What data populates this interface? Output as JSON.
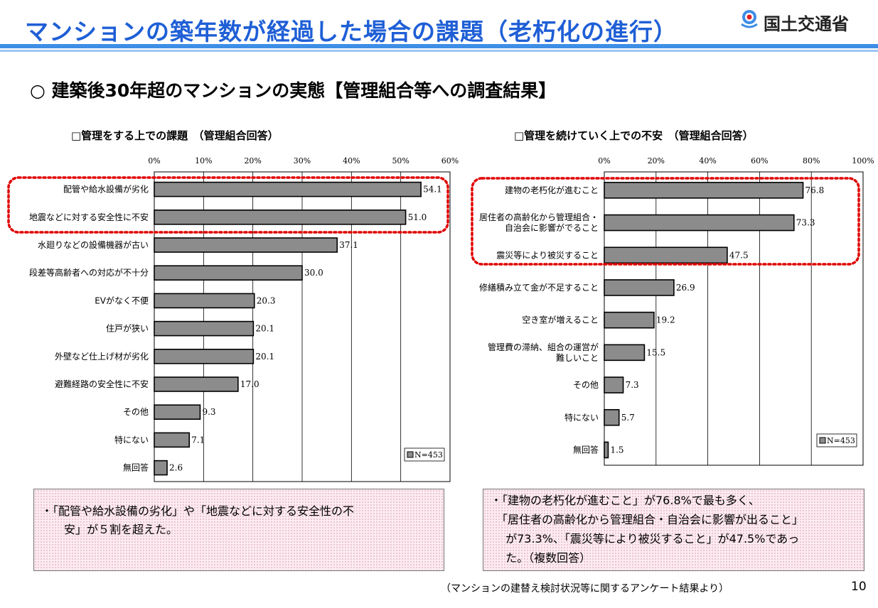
{
  "header": {
    "title": "マンションの築年数が経過した場合の課題（老朽化の進行）",
    "org": "国土交通省"
  },
  "section_title": "○ 建築後30年超のマンションの実態【管理組合等への調査結果】",
  "colors": {
    "bar": "#8c8c8c",
    "highlight": "#e00000",
    "accent": "#1f5fd6"
  },
  "chart_data": [
    {
      "type": "bar",
      "orientation": "horizontal",
      "title": "□管理をする上での課題　（管理組合回答）",
      "xlim": [
        0,
        60
      ],
      "ticks": [
        "0%",
        "10%",
        "20%",
        "30%",
        "40%",
        "50%",
        "60%"
      ],
      "categories": [
        "配管や給水設備が劣化",
        "地震などに対する安全性に不安",
        "水廻りなどの設備機器が古い",
        "段差等高齢者への対応が不十分",
        "EVがなく不便",
        "住戸が狭い",
        "外壁など仕上げ材が劣化",
        "避難経路の安全性に不安",
        "その他",
        "特にない",
        "無回答"
      ],
      "values": [
        54.1,
        51.0,
        37.1,
        30.0,
        20.3,
        20.1,
        20.1,
        17.0,
        9.3,
        7.1,
        2.6
      ],
      "labels": [
        "54.1",
        "51.0",
        "37.1",
        "30.0",
        "20.3",
        "20.1",
        "20.1",
        "17.0",
        "9.3",
        "7.1",
        "2.6"
      ],
      "legend": "N=453",
      "highlighted": [
        0,
        1
      ]
    },
    {
      "type": "bar",
      "orientation": "horizontal",
      "title": "□管理を続けていく上での不安　（管理組合回答）",
      "xlim": [
        0,
        100
      ],
      "ticks": [
        "0%",
        "20%",
        "40%",
        "60%",
        "80%",
        "100%"
      ],
      "categories": [
        "建物の老朽化が進むこと",
        "居住者の高齢化から管理組合・\n自治会に影響がでること",
        "震災等により被災すること",
        "修繕積み立て金が不足すること",
        "空き室が増えること",
        "管理費の滞納、組合の運営が\n難しいこと",
        "その他",
        "特にない",
        "無回答"
      ],
      "values": [
        76.8,
        73.3,
        47.5,
        26.9,
        19.2,
        15.5,
        7.3,
        5.7,
        1.5
      ],
      "labels": [
        "76.8",
        "73.3",
        "47.5",
        "26.9",
        "19.2",
        "15.5",
        "7.3",
        "5.7",
        "1.5"
      ],
      "legend": "N=453",
      "highlighted": [
        0,
        1,
        2
      ]
    }
  ],
  "notes": {
    "left": "・「配管や給水設備の劣化」や「地震などに対する安全性の不\n　　安」が５割を超えた。",
    "right": "・「建物の老朽化が進むこと」が76.8%で最も多く、\n　「居住者の高齢化から管理組合・自治会に影響が出ること」\n　 が73.3%、「震災等により被災すること」が47.5%であっ\n　 た。（複数回答）"
  },
  "source": "（マンションの建替え検討状況等に関するアンケート結果より）",
  "page_number": "10"
}
